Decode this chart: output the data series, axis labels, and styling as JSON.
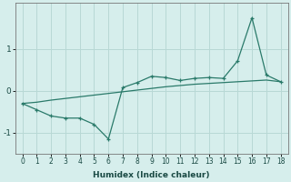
{
  "xlabel": "Humidex (Indice chaleur)",
  "x": [
    0,
    1,
    2,
    3,
    4,
    5,
    6,
    7,
    8,
    9,
    10,
    11,
    12,
    13,
    14,
    15,
    16,
    17,
    18
  ],
  "line1_y": [
    -0.3,
    -0.45,
    -0.6,
    -0.65,
    -0.65,
    -0.8,
    -1.15,
    0.08,
    0.2,
    0.35,
    0.32,
    0.25,
    0.3,
    0.32,
    0.3,
    0.72,
    1.75,
    0.38,
    0.22
  ],
  "line2_y": [
    -0.3,
    -0.27,
    -0.22,
    -0.18,
    -0.14,
    -0.1,
    -0.06,
    -0.02,
    0.02,
    0.06,
    0.1,
    0.13,
    0.16,
    0.18,
    0.2,
    0.22,
    0.24,
    0.26,
    0.22
  ],
  "line_color": "#2a7a6a",
  "bg_color": "#d6eeec",
  "grid_color": "#b8d8d5",
  "ylim": [
    -1.5,
    2.1
  ],
  "xlim": [
    -0.5,
    18.5
  ],
  "yticks": [
    -1,
    0,
    1
  ],
  "xticks": [
    0,
    1,
    2,
    3,
    4,
    5,
    6,
    7,
    8,
    9,
    10,
    11,
    12,
    13,
    14,
    15,
    16,
    17,
    18
  ]
}
